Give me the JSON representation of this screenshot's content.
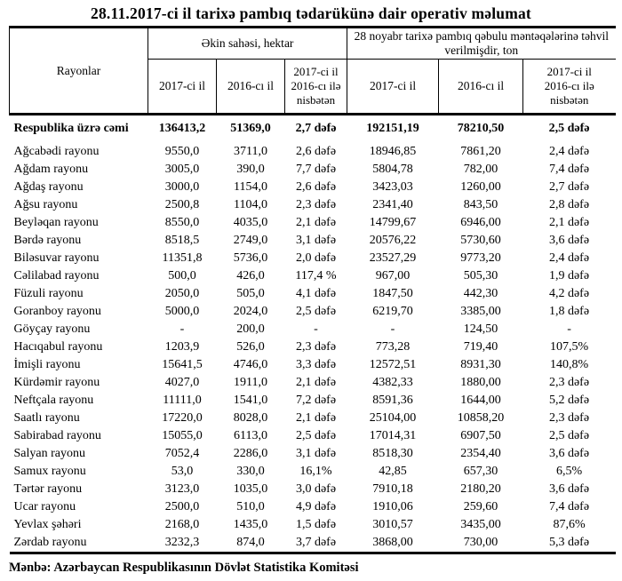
{
  "title": "28.11.2017-ci il tarixə pambıq tədarükünə dair operativ məlumat",
  "table": {
    "region_column_header": "Rayonlar",
    "group_area_header": "Əkin sahəsi, hektar",
    "group_delivery_header": "28 noyabr tarixə pambıq qəbulu məntəqələrinə təhvil verilmişdir, ton",
    "sub_headers": {
      "area_2017": "2017-ci il",
      "area_2016": "2016-cı il",
      "area_ratio": "2017-ci il\n2016-cı ilə\nnisbətən",
      "delivery_2017": "2017-ci il",
      "delivery_2016": "2016-cı il",
      "delivery_ratio": "2017-ci il\n2016-cı ilə\nnisbətən"
    },
    "summary": {
      "region": "Respublika üzrə cəmi",
      "values": [
        "136413,2",
        "51369,0",
        "2,7 dəfə",
        "192151,19",
        "78210,50",
        "2,5 dəfə"
      ]
    },
    "rows": [
      {
        "region": "Ağcabədi rayonu",
        "values": [
          "9550,0",
          "3711,0",
          "2,6 dəfə",
          "18946,85",
          "7861,20",
          "2,4 dəfə"
        ]
      },
      {
        "region": "Ağdam rayonu",
        "values": [
          "3005,0",
          "390,0",
          "7,7 dəfə",
          "5804,78",
          "782,00",
          "7,4 dəfə"
        ]
      },
      {
        "region": "Ağdaş rayonu",
        "values": [
          "3000,0",
          "1154,0",
          "2,6 dəfə",
          "3423,03",
          "1260,00",
          "2,7 dəfə"
        ]
      },
      {
        "region": "Ağsu rayonu",
        "values": [
          "2500,8",
          "1104,0",
          "2,3 dəfə",
          "2341,40",
          "843,50",
          "2,8 dəfə"
        ]
      },
      {
        "region": "Beyləqan rayonu",
        "values": [
          "8550,0",
          "4035,0",
          "2,1 dəfə",
          "14799,67",
          "6946,00",
          "2,1 dəfə"
        ]
      },
      {
        "region": "Bərdə rayonu",
        "values": [
          "8518,5",
          "2749,0",
          "3,1 dəfə",
          "20576,22",
          "5730,60",
          "3,6 dəfə"
        ]
      },
      {
        "region": "Biləsuvar rayonu",
        "values": [
          "11351,8",
          "5736,0",
          "2,0 dəfə",
          "23527,29",
          "9773,20",
          "2,4 dəfə"
        ]
      },
      {
        "region": "Cəlilabad rayonu",
        "values": [
          "500,0",
          "426,0",
          "117,4 %",
          "967,00",
          "505,30",
          "1,9 dəfə"
        ]
      },
      {
        "region": "Füzuli rayonu",
        "values": [
          "2050,0",
          "505,0",
          "4,1 dəfə",
          "1847,50",
          "442,30",
          "4,2 dəfə"
        ]
      },
      {
        "region": "Goranboy rayonu",
        "values": [
          "5000,0",
          "2024,0",
          "2,5 dəfə",
          "6219,70",
          "3385,00",
          "1,8 dəfə"
        ]
      },
      {
        "region": "Göyçay rayonu",
        "values": [
          "-",
          "200,0",
          "-",
          "-",
          "124,50",
          "-"
        ]
      },
      {
        "region": "Hacıqabul rayonu",
        "values": [
          "1203,9",
          "526,0",
          "2,3 dəfə",
          "773,28",
          "719,40",
          "107,5%"
        ]
      },
      {
        "region": "İmişli rayonu",
        "values": [
          "15641,5",
          "4746,0",
          "3,3 dəfə",
          "12572,51",
          "8931,30",
          "140,8%"
        ]
      },
      {
        "region": "Kürdəmir rayonu",
        "values": [
          "4027,0",
          "1911,0",
          "2,1 dəfə",
          "4382,33",
          "1880,00",
          "2,3 dəfə"
        ]
      },
      {
        "region": "Neftçala rayonu",
        "values": [
          "11111,0",
          "1541,0",
          "7,2 dəfə",
          "8591,36",
          "1644,00",
          "5,2 dəfə"
        ]
      },
      {
        "region": "Saatlı rayonu",
        "values": [
          "17220,0",
          "8028,0",
          "2,1 dəfə",
          "25104,00",
          "10858,20",
          "2,3 dəfə"
        ]
      },
      {
        "region": "Sabirabad rayonu",
        "values": [
          "15055,0",
          "6113,0",
          "2,5 dəfə",
          "17014,31",
          "6907,50",
          "2,5 dəfə"
        ]
      },
      {
        "region": "Salyan rayonu",
        "values": [
          "7052,4",
          "2286,0",
          "3,1 dəfə",
          "8518,30",
          "2354,40",
          "3,6 dəfə"
        ]
      },
      {
        "region": "Samux rayonu",
        "values": [
          "53,0",
          "330,0",
          "16,1%",
          "42,85",
          "657,30",
          "6,5%"
        ]
      },
      {
        "region": "Tərtər rayonu",
        "values": [
          "3123,0",
          "1035,0",
          "3,0 dəfə",
          "7910,18",
          "2180,20",
          "3,6 dəfə"
        ]
      },
      {
        "region": "Ucar rayonu",
        "values": [
          "2500,0",
          "510,0",
          "4,9 dəfə",
          "1910,06",
          "259,60",
          "7,4 dəfə"
        ]
      },
      {
        "region": "Yevlax şəhəri",
        "values": [
          "2168,0",
          "1435,0",
          "1,5 dəfə",
          "3010,57",
          "3435,00",
          "87,6%"
        ]
      },
      {
        "region": "Zərdab rayonu",
        "values": [
          "3232,3",
          "874,0",
          "3,7 dəfə",
          "3868,00",
          "730,00",
          "5,3 dəfə"
        ]
      }
    ]
  },
  "footer": {
    "source_note": "Mənbə: Azərbaycan Respublikasının Dövlət Statistika Komitəsi"
  }
}
